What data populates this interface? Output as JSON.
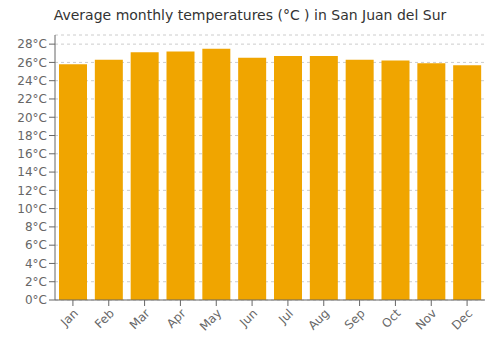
{
  "chart_data": {
    "type": "bar",
    "title": "Average monthly temperatures (°C ) in San Juan del Sur",
    "categories": [
      "Jan",
      "Feb",
      "Mar",
      "Apr",
      "May",
      "Jun",
      "Jul",
      "Aug",
      "Sep",
      "Oct",
      "Nov",
      "Dec"
    ],
    "values": [
      25.8,
      26.3,
      27.1,
      27.2,
      27.5,
      26.5,
      26.7,
      26.7,
      26.3,
      26.2,
      25.9,
      25.7
    ],
    "color": "#F0A500",
    "ylim": [
      0,
      29
    ],
    "yticks": [
      {
        "value": 0,
        "label": "0°C"
      },
      {
        "value": 2,
        "label": "2°C"
      },
      {
        "value": 4,
        "label": "4°C"
      },
      {
        "value": 6,
        "label": "6°C"
      },
      {
        "value": 8,
        "label": "8°C"
      },
      {
        "value": 10,
        "label": "10°C"
      },
      {
        "value": 12,
        "label": "12°C"
      },
      {
        "value": 14,
        "label": "14°C"
      },
      {
        "value": 16,
        "label": "16°C"
      },
      {
        "value": 18,
        "label": "18°C"
      },
      {
        "value": 20,
        "label": "20°C"
      },
      {
        "value": 22,
        "label": "22°C"
      },
      {
        "value": 24,
        "label": "24°C"
      },
      {
        "value": 26,
        "label": "26°C"
      },
      {
        "value": 28,
        "label": "28°C"
      }
    ],
    "grid": true
  }
}
